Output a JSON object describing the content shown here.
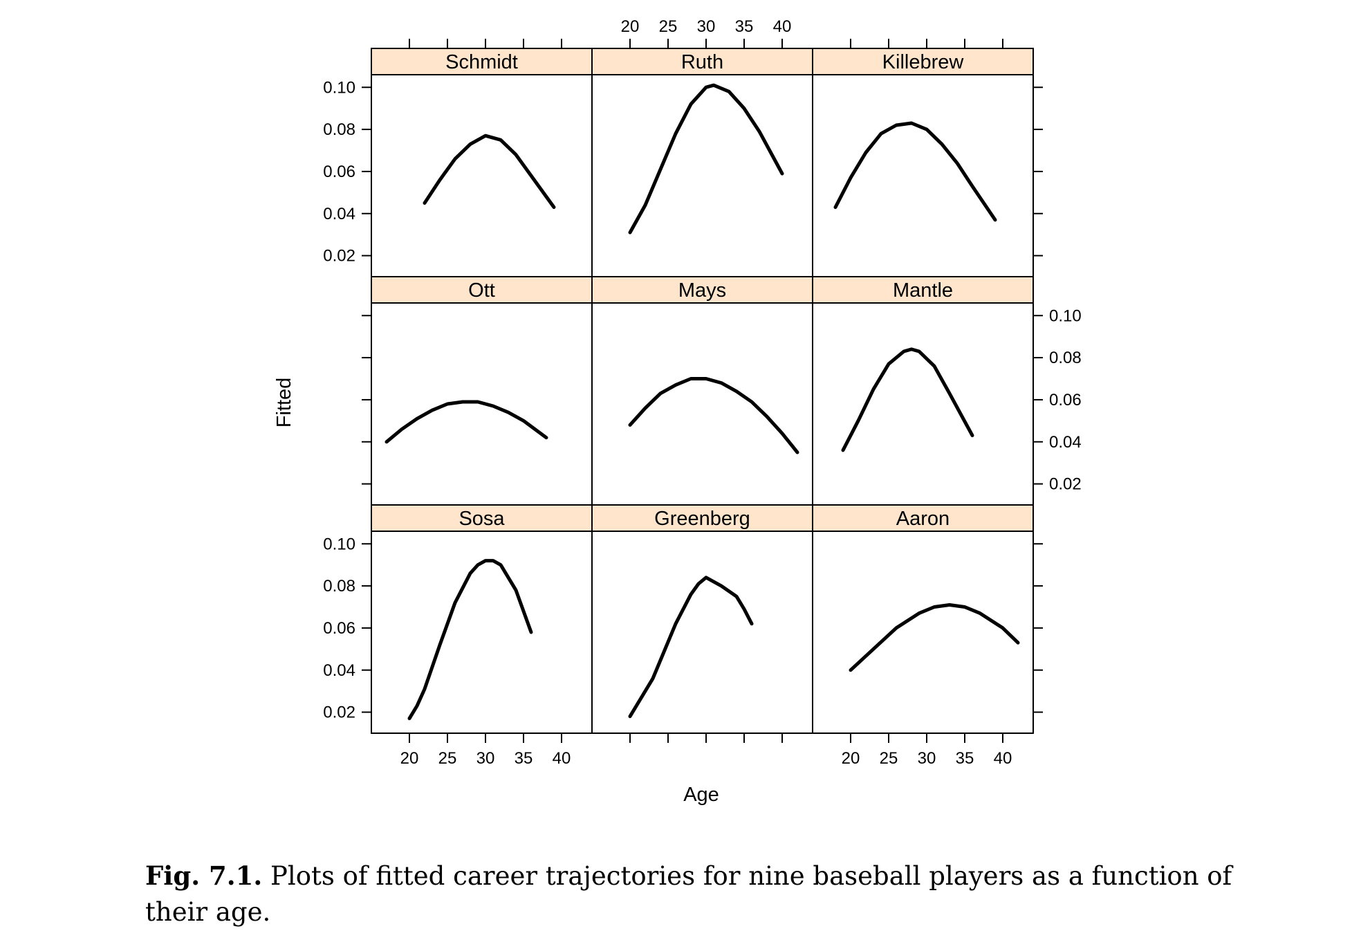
{
  "chart_data": {
    "type": "line",
    "layout": "trellis 3x3",
    "xlabel": "Age",
    "ylabel": "Fitted",
    "xlim": [
      15,
      44
    ],
    "ylim": [
      0.01,
      0.106
    ],
    "x_ticks": [
      20,
      25,
      30,
      35,
      40
    ],
    "y_ticks": [
      0.02,
      0.04,
      0.06,
      0.08,
      0.1
    ],
    "x_tick_labels": [
      "20",
      "25",
      "30",
      "35",
      "40"
    ],
    "y_tick_labels": [
      "0.02",
      "0.04",
      "0.06",
      "0.08",
      "0.10"
    ],
    "grid": false,
    "strip_color": "#ffe5cc",
    "line_color": "#000000",
    "panels": [
      {
        "name": "Schmidt",
        "x": [
          22,
          24,
          26,
          28,
          30,
          32,
          34,
          36,
          39
        ],
        "y": [
          0.045,
          0.056,
          0.066,
          0.073,
          0.077,
          0.075,
          0.068,
          0.058,
          0.043
        ]
      },
      {
        "name": "Ruth",
        "x": [
          20,
          22,
          24,
          26,
          28,
          30,
          31,
          33,
          35,
          37,
          40
        ],
        "y": [
          0.031,
          0.044,
          0.061,
          0.078,
          0.092,
          0.1,
          0.101,
          0.098,
          0.09,
          0.079,
          0.059
        ]
      },
      {
        "name": "Killebrew",
        "x": [
          18,
          20,
          22,
          24,
          26,
          28,
          30,
          32,
          34,
          36,
          39
        ],
        "y": [
          0.043,
          0.057,
          0.069,
          0.078,
          0.082,
          0.083,
          0.08,
          0.073,
          0.064,
          0.053,
          0.037
        ]
      },
      {
        "name": "Ott",
        "x": [
          17,
          19,
          21,
          23,
          25,
          27,
          29,
          31,
          33,
          35,
          38
        ],
        "y": [
          0.04,
          0.046,
          0.051,
          0.055,
          0.058,
          0.059,
          0.059,
          0.057,
          0.054,
          0.05,
          0.042
        ]
      },
      {
        "name": "Mays",
        "x": [
          20,
          22,
          24,
          26,
          28,
          30,
          32,
          34,
          36,
          38,
          40,
          42
        ],
        "y": [
          0.048,
          0.056,
          0.063,
          0.067,
          0.07,
          0.07,
          0.068,
          0.064,
          0.059,
          0.052,
          0.044,
          0.035
        ]
      },
      {
        "name": "Mantle",
        "x": [
          19,
          21,
          23,
          25,
          27,
          28,
          29,
          31,
          33,
          36
        ],
        "y": [
          0.036,
          0.05,
          0.065,
          0.077,
          0.083,
          0.084,
          0.083,
          0.076,
          0.063,
          0.043
        ]
      },
      {
        "name": "Sosa",
        "x": [
          20,
          21,
          22,
          24,
          26,
          28,
          29,
          30,
          31,
          32,
          34,
          36
        ],
        "y": [
          0.017,
          0.023,
          0.031,
          0.052,
          0.072,
          0.086,
          0.09,
          0.092,
          0.092,
          0.09,
          0.078,
          0.058
        ]
      },
      {
        "name": "Greenberg",
        "x": [
          20,
          23,
          26,
          28,
          29,
          30,
          32,
          34,
          35,
          36
        ],
        "y": [
          0.018,
          0.036,
          0.062,
          0.076,
          0.081,
          0.084,
          0.08,
          0.075,
          0.069,
          0.062
        ]
      },
      {
        "name": "Aaron",
        "x": [
          20,
          23,
          26,
          29,
          31,
          33,
          35,
          37,
          40,
          42
        ],
        "y": [
          0.04,
          0.05,
          0.06,
          0.067,
          0.07,
          0.071,
          0.07,
          0.067,
          0.06,
          0.053
        ]
      }
    ]
  },
  "caption": {
    "label": "Fig. 7.1.",
    "text": "Plots of fitted career trajectories for nine baseball players as a function of their age."
  }
}
